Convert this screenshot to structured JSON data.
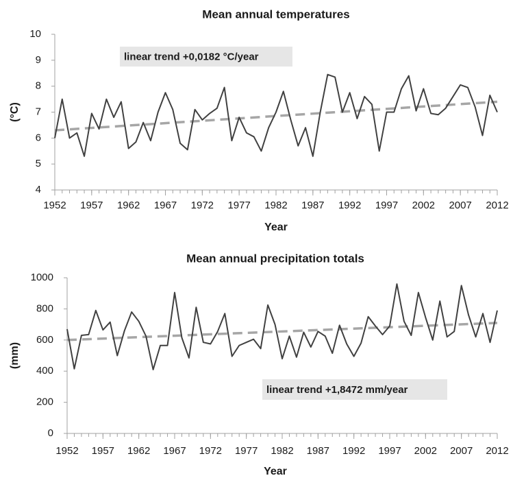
{
  "chart_data": [
    {
      "type": "line",
      "title": "Mean annual temperatures",
      "xlabel": "Year",
      "ylabel": "(°C)",
      "x": [
        1952,
        1953,
        1954,
        1955,
        1956,
        1957,
        1958,
        1959,
        1960,
        1961,
        1962,
        1963,
        1964,
        1965,
        1966,
        1967,
        1968,
        1969,
        1970,
        1971,
        1972,
        1973,
        1974,
        1975,
        1976,
        1977,
        1978,
        1979,
        1980,
        1981,
        1982,
        1983,
        1984,
        1985,
        1986,
        1987,
        1988,
        1989,
        1990,
        1991,
        1992,
        1993,
        1994,
        1995,
        1996,
        1997,
        1998,
        1999,
        2000,
        2001,
        2002,
        2003,
        2004,
        2005,
        2006,
        2007,
        2008,
        2009,
        2010,
        2011,
        2012
      ],
      "series": [
        {
          "color": "#404040",
          "values": [
            6.0,
            7.5,
            6.0,
            6.2,
            5.3,
            6.95,
            6.35,
            7.5,
            6.8,
            7.4,
            5.6,
            5.85,
            6.6,
            5.9,
            7.0,
            7.75,
            7.1,
            5.8,
            5.55,
            7.1,
            6.7,
            6.95,
            7.15,
            7.95,
            5.9,
            6.8,
            6.2,
            6.05,
            5.5,
            6.4,
            7.0,
            7.8,
            6.7,
            5.7,
            6.4,
            5.3,
            7.0,
            8.45,
            8.35,
            7.0,
            7.75,
            6.75,
            7.6,
            7.3,
            5.5,
            7.0,
            7.0,
            7.9,
            8.4,
            7.05,
            7.9,
            6.95,
            6.9,
            7.15,
            7.6,
            8.05,
            7.95,
            7.2,
            6.1,
            7.65,
            7.0
          ]
        }
      ],
      "trend": {
        "x": [
          1952,
          2012
        ],
        "values": [
          6.3,
          7.4
        ],
        "color": "#a6a6a6"
      },
      "annotation": "linear trend +0,0182 °C/year",
      "xlim": [
        1952,
        2012
      ],
      "xticks": [
        1952,
        1957,
        1962,
        1967,
        1972,
        1977,
        1982,
        1987,
        1992,
        1997,
        2002,
        2007,
        2012
      ],
      "ylim": [
        4,
        10
      ],
      "yticks": [
        4,
        5,
        6,
        7,
        8,
        9,
        10
      ]
    },
    {
      "type": "line",
      "title": "Mean annual precipitation totals",
      "xlabel": "Year",
      "ylabel": "(mm)",
      "x": [
        1952,
        1953,
        1954,
        1955,
        1956,
        1957,
        1958,
        1959,
        1960,
        1961,
        1962,
        1963,
        1964,
        1965,
        1966,
        1967,
        1968,
        1969,
        1970,
        1971,
        1972,
        1973,
        1974,
        1975,
        1976,
        1977,
        1978,
        1979,
        1980,
        1981,
        1982,
        1983,
        1984,
        1985,
        1986,
        1987,
        1988,
        1989,
        1990,
        1991,
        1992,
        1993,
        1994,
        1995,
        1996,
        1997,
        1998,
        1999,
        2000,
        2001,
        2002,
        2003,
        2004,
        2005,
        2006,
        2007,
        2008,
        2009,
        2010,
        2011,
        2012
      ],
      "series": [
        {
          "color": "#404040",
          "values": [
            670,
            415,
            630,
            635,
            790,
            665,
            715,
            500,
            660,
            780,
            720,
            625,
            410,
            565,
            565,
            905,
            615,
            485,
            810,
            585,
            575,
            655,
            770,
            495,
            565,
            585,
            605,
            545,
            825,
            700,
            480,
            625,
            490,
            650,
            555,
            655,
            625,
            515,
            695,
            575,
            495,
            580,
            750,
            690,
            635,
            690,
            960,
            720,
            630,
            905,
            745,
            600,
            850,
            620,
            655,
            950,
            760,
            620,
            770,
            585,
            790
          ]
        }
      ],
      "trend": {
        "x": [
          1952,
          2012
        ],
        "values": [
          600,
          710
        ],
        "color": "#a6a6a6"
      },
      "annotation": "linear trend +1,8472 mm/year",
      "xlim": [
        1952,
        2012
      ],
      "xticks": [
        1952,
        1957,
        1962,
        1967,
        1972,
        1977,
        1982,
        1987,
        1992,
        1997,
        2002,
        2007,
        2012
      ],
      "ylim": [
        0,
        1000
      ],
      "yticks": [
        0,
        200,
        400,
        600,
        800,
        1000
      ]
    }
  ]
}
